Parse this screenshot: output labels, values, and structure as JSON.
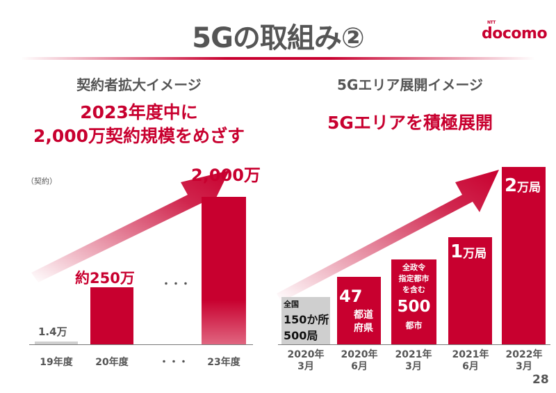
{
  "header": {
    "title": "5Gの取組み②",
    "logo_text": "docomo",
    "logo_small": "NTT"
  },
  "left": {
    "subtitle": "契約者拡大イメージ",
    "headline_1": "2023年度中に",
    "headline_2": "2,000万契約規模をめざす",
    "unit": "（契約）",
    "ellipsis": "・・・"
  },
  "right": {
    "subtitle": "5Gエリア展開イメージ",
    "headline": "5Gエリアを積極展開"
  },
  "page_number": "28",
  "chart_data": [
    {
      "type": "bar",
      "categories": [
        "19年度",
        "20年度",
        "・・・",
        "23年度"
      ],
      "value_labels": [
        "1.4万",
        "約250万",
        "",
        "2,000万"
      ],
      "values": [
        14000,
        2500000,
        null,
        20000000
      ],
      "ylabel": "（契約）",
      "colors": {
        "past": "#cfcfcf",
        "bar": "#c8002f"
      }
    },
    {
      "type": "bar",
      "categories": [
        [
          "2020年",
          "3月"
        ],
        [
          "2020年",
          "6月"
        ],
        [
          "2021年",
          "3月"
        ],
        [
          "2021年",
          "6月"
        ],
        [
          "2022年",
          "3月"
        ]
      ],
      "bar_labels": [
        {
          "lines": [
            "全国",
            "150か所",
            "500局"
          ]
        },
        {
          "big": "47",
          "lines": [
            "都道",
            "府県"
          ]
        },
        {
          "lines": [
            "全政令",
            "指定都市",
            "を含む"
          ],
          "big": "500",
          "tail": "都市"
        },
        {
          "big": "1",
          "unit": "万局"
        },
        {
          "big": "2",
          "unit": "万局"
        }
      ],
      "colors": {
        "past": "#cfcfcf",
        "bar": "#c8002f"
      }
    }
  ]
}
